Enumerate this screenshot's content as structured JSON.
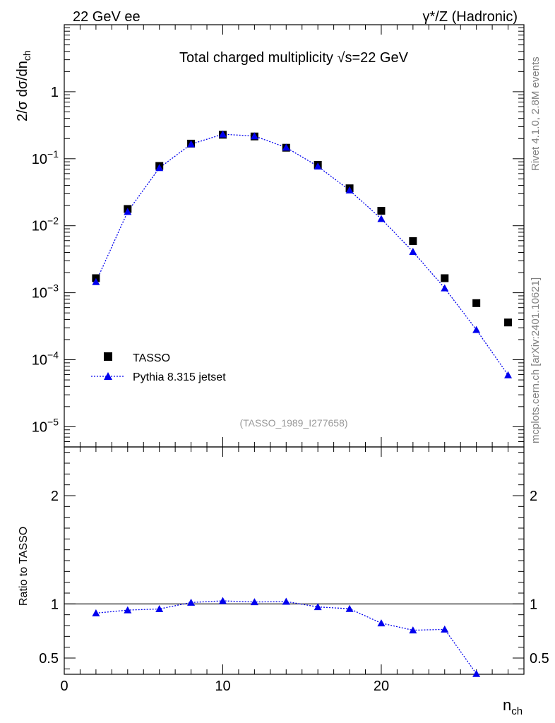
{
  "header": {
    "left": "22 GeV ee",
    "right": "γ*/Z (Hadronic)"
  },
  "side_text": {
    "version": "Rivet 4.1.0,  2.8M events",
    "site": "mcplots.cern.ch [arXiv:2401.10621]"
  },
  "colors": {
    "data": "#000000",
    "mc": "#0000ee"
  },
  "chart_data": [
    {
      "type": "scatter",
      "panel": "main",
      "title": "Total charged multiplicity √s=22 GeV",
      "ylabel": "2/σ  dσ/dn_ch",
      "yscale": "log",
      "xlim": [
        0,
        29
      ],
      "ylim": [
        5e-06,
        10
      ],
      "y_tick_labels": [
        "10^-5",
        "10^-4",
        "10^-3",
        "10^-2",
        "10^-1",
        "1"
      ],
      "x": [
        2,
        4,
        6,
        8,
        10,
        12,
        14,
        16,
        18,
        20,
        22,
        24,
        26,
        28
      ],
      "series": [
        {
          "name": "TASSO",
          "marker": "square",
          "values": [
            0.00165,
            0.0178,
            0.078,
            0.168,
            0.228,
            0.215,
            0.146,
            0.081,
            0.0362,
            0.0167,
            0.0059,
            0.00165,
            0.0007,
            0.00036
          ]
        },
        {
          "name": "Pythia 8.315 jetset",
          "marker": "triangle",
          "line": "dotted",
          "values": [
            0.00145,
            0.0162,
            0.073,
            0.165,
            0.232,
            0.218,
            0.147,
            0.077,
            0.0338,
            0.0127,
            0.0041,
            0.00117,
            0.00028,
            5.9e-05
          ]
        }
      ],
      "legend": [
        "TASSO",
        "Pythia 8.315 jetset"
      ],
      "legend_position": "lower-left",
      "annotation": "(TASSO_1989_I277658)"
    },
    {
      "type": "line",
      "panel": "ratio",
      "ylabel": "Ratio to TASSO",
      "xlabel": "n_ch",
      "xlim": [
        0,
        29
      ],
      "ylim": [
        0.35,
        2.45
      ],
      "y_tick_labels": [
        "0.5",
        "1",
        "2"
      ],
      "x_tick_labels": [
        "0",
        "10",
        "20"
      ],
      "reference": 1.0,
      "x": [
        2,
        4,
        6,
        8,
        10,
        12,
        14,
        16,
        18,
        20,
        22,
        24,
        26
      ],
      "values": [
        0.915,
        0.943,
        0.953,
        1.013,
        1.028,
        1.018,
        1.022,
        0.972,
        0.955,
        0.822,
        0.757,
        0.765,
        0.355
      ]
    }
  ]
}
